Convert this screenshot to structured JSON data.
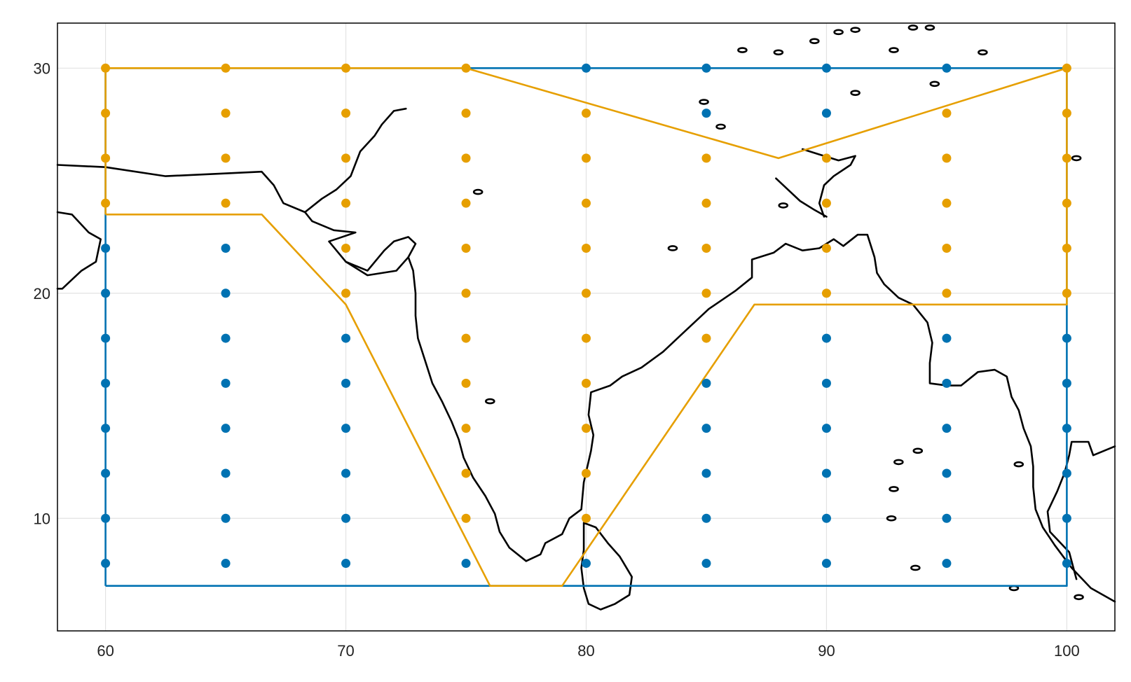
{
  "chart_data": {
    "type": "scatter",
    "title": "",
    "xlabel": "",
    "ylabel": "",
    "xlim": [
      58,
      102
    ],
    "ylim": [
      5,
      32
    ],
    "x_ticks": [
      60,
      70,
      80,
      90,
      100
    ],
    "y_ticks": [
      10,
      20,
      30
    ],
    "x_tick_labels": [
      "60",
      "70",
      "80",
      "90",
      "100"
    ],
    "y_tick_labels": [
      "10",
      "20",
      "30"
    ],
    "grid": true,
    "legend": "none",
    "colors": {
      "blue": "#0072b2",
      "orange": "#e69f00",
      "coast": "#000000"
    },
    "grid_x": [
      60,
      65,
      70,
      75,
      80,
      85,
      90,
      95,
      100
    ],
    "grid_y": [
      8,
      10,
      12,
      14,
      16,
      18,
      20,
      22,
      24,
      26,
      28,
      30
    ],
    "blue_polygon": [
      [
        60,
        7
      ],
      [
        100,
        7
      ],
      [
        100,
        30
      ],
      [
        60,
        30
      ],
      [
        60,
        7
      ]
    ],
    "orange_polygon": [
      [
        60,
        23.5
      ],
      [
        66.5,
        23.5
      ],
      [
        70,
        19.5
      ],
      [
        76,
        7
      ],
      [
        79,
        7
      ],
      [
        87,
        19.5
      ],
      [
        100,
        19.5
      ],
      [
        100,
        30
      ],
      [
        88,
        26
      ],
      [
        75,
        30
      ],
      [
        60,
        30
      ],
      [
        60,
        23.5
      ]
    ],
    "series": [
      {
        "color": "#0072b2",
        "marker": "circle",
        "description": "grid points outside region"
      },
      {
        "color": "#e69f00",
        "marker": "circle",
        "description": "grid points inside region"
      }
    ]
  }
}
